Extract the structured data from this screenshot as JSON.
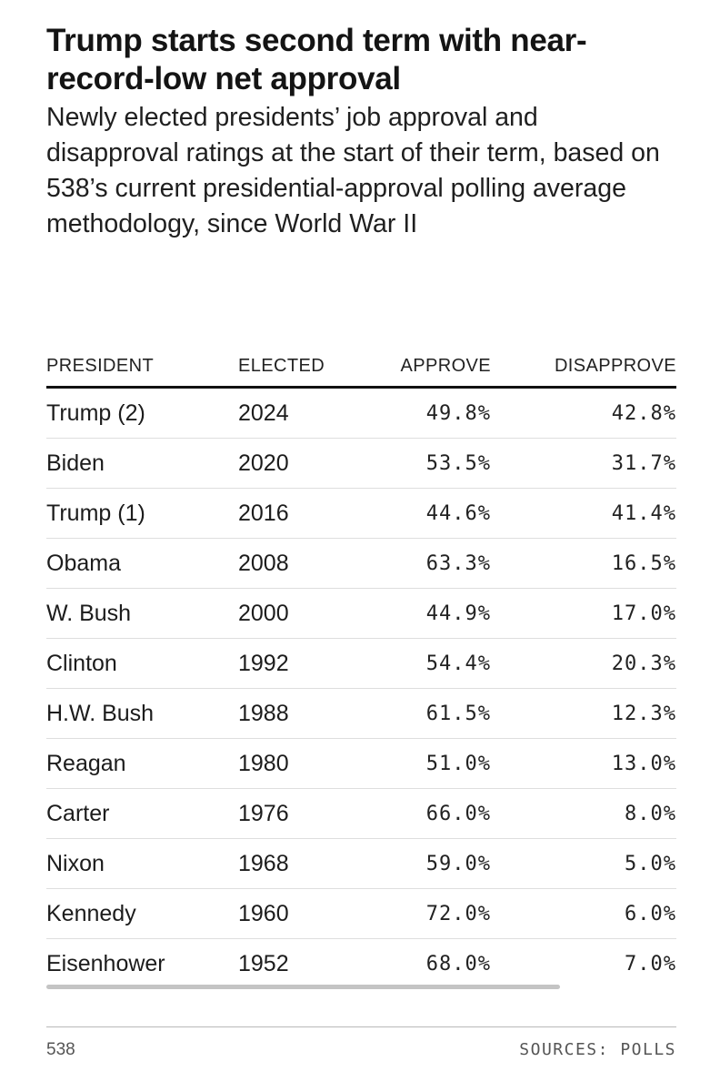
{
  "chart_data": {
    "type": "table",
    "title": "Trump starts second term with near-record-low net approval",
    "subtitle": "Newly elected presidents’ job approval and disapproval ratings at the start of their term, based on 538’s current presidential-approval polling average methodology, since World War II",
    "columns": [
      "PRESIDENT",
      "ELECTED",
      "APPROVE",
      "DISAPPROVE"
    ],
    "rows": [
      [
        "Trump (2)",
        "2024",
        "49.8%",
        "42.8%"
      ],
      [
        "Biden",
        "2020",
        "53.5%",
        "31.7%"
      ],
      [
        "Trump (1)",
        "2016",
        "44.6%",
        "41.4%"
      ],
      [
        "Obama",
        "2008",
        "63.3%",
        "16.5%"
      ],
      [
        "W. Bush",
        "2000",
        "44.9%",
        "17.0%"
      ],
      [
        "Clinton",
        "1992",
        "54.4%",
        "20.3%"
      ],
      [
        "H.W. Bush",
        "1988",
        "61.5%",
        "12.3%"
      ],
      [
        "Reagan",
        "1980",
        "51.0%",
        "13.0%"
      ],
      [
        "Carter",
        "1976",
        "66.0%",
        "8.0%"
      ],
      [
        "Nixon",
        "1968",
        "59.0%",
        "5.0%"
      ],
      [
        "Kennedy",
        "1960",
        "72.0%",
        "6.0%"
      ],
      [
        "Eisenhower",
        "1952",
        "68.0%",
        "7.0%"
      ]
    ]
  },
  "footer": {
    "brand": "538",
    "sources": "SOURCES: POLLS"
  }
}
